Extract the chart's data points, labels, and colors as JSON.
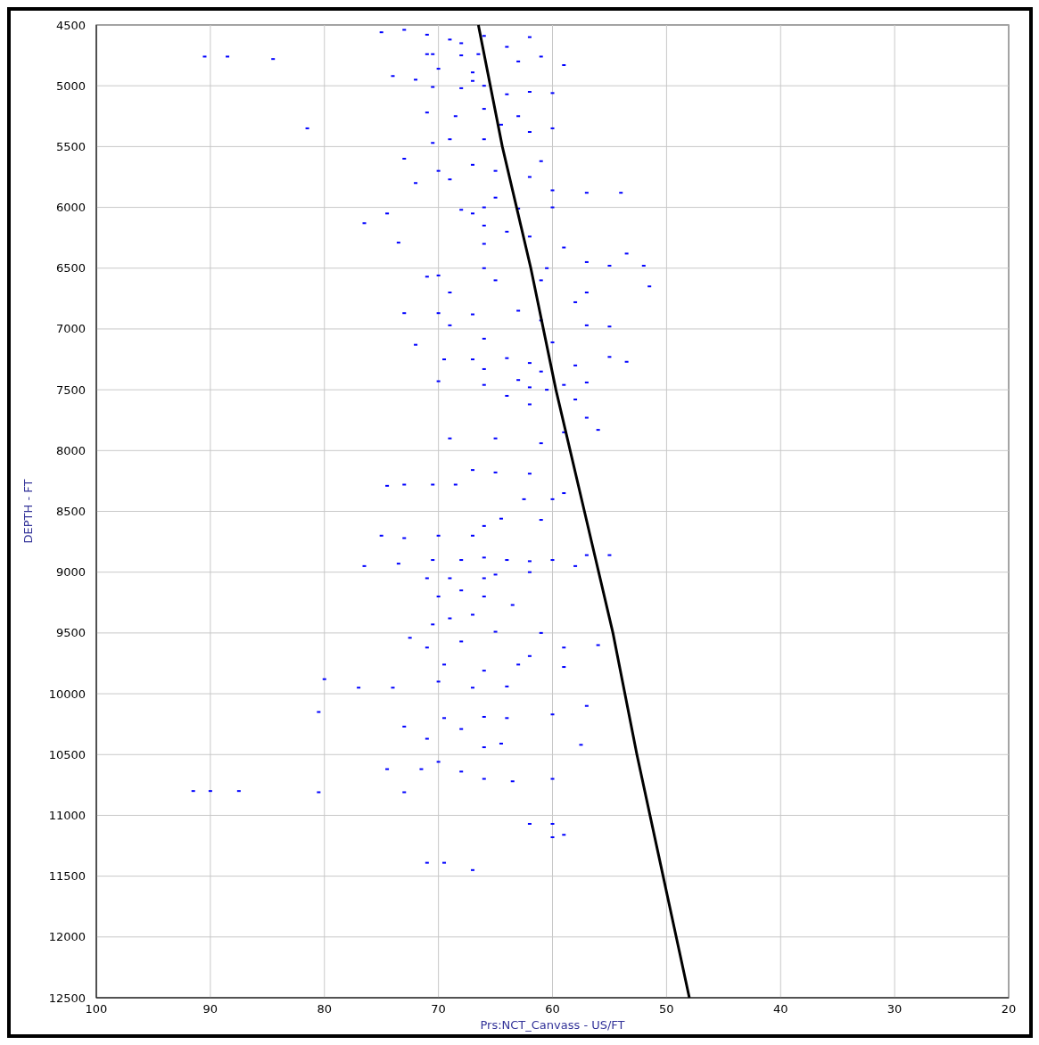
{
  "chart_data": {
    "type": "scatter",
    "xlabel": "Prs:NCT_Canvass - US/FT",
    "ylabel": "DEPTH - FT",
    "xlim": [
      100,
      20
    ],
    "ylim": [
      12500,
      4500
    ],
    "xticks": [
      100,
      90,
      80,
      70,
      60,
      50,
      40,
      30,
      20
    ],
    "yticks": [
      4500,
      5000,
      5500,
      6000,
      6500,
      7000,
      7500,
      8000,
      8500,
      9000,
      9500,
      10000,
      10500,
      11000,
      11500,
      12000,
      12500
    ],
    "grid": true,
    "series": [
      {
        "color": "#0000ff",
        "marker": "square",
        "x": [
          75,
          73,
          71,
          69,
          68,
          66,
          62,
          64,
          71,
          70.5,
          68,
          66.5,
          63,
          59,
          70,
          67,
          74,
          72,
          61,
          67,
          90.5,
          88.5,
          84.5,
          70.5,
          68,
          66,
          64,
          62,
          60,
          68.5,
          66,
          63,
          71,
          64.5,
          62,
          60,
          81.5,
          69,
          66,
          73,
          70.5,
          61,
          67,
          65,
          62,
          70,
          72,
          69,
          57,
          54,
          60,
          65,
          66,
          68,
          63,
          60,
          67,
          74.5,
          76.5,
          66,
          64,
          62,
          73.5,
          66,
          59,
          57,
          55,
          52,
          53.5,
          60.5,
          66,
          71,
          70,
          69,
          61,
          57,
          51.5,
          65,
          70,
          67,
          63,
          73,
          58,
          61,
          57,
          55,
          69,
          72,
          66,
          60,
          69.5,
          67,
          64,
          62,
          58,
          55,
          53.5,
          66,
          61,
          63,
          66,
          70,
          62,
          59,
          57,
          60.5,
          64,
          62,
          58,
          57,
          56,
          59,
          69,
          65,
          61,
          67,
          65,
          62,
          73,
          74.5,
          70.5,
          68.5,
          62.5,
          60,
          59,
          64.5,
          66,
          61,
          75,
          73,
          70,
          67,
          76.5,
          73.5,
          70.5,
          68,
          66,
          64,
          62,
          60,
          57,
          55,
          58,
          66,
          69,
          71,
          62,
          65,
          68,
          70,
          66,
          63.5,
          67,
          69,
          70.5,
          65,
          61,
          59,
          56,
          62,
          71,
          72.5,
          68,
          69.5,
          66,
          63,
          59,
          80,
          77,
          74,
          67,
          70,
          64,
          80.5,
          66,
          60,
          64,
          57,
          73,
          69.5,
          68,
          71,
          64.5,
          57.5,
          66,
          70,
          71.5,
          68,
          66,
          74.5,
          63.5,
          60,
          91.5,
          90,
          87.5,
          80.5,
          73,
          62,
          60,
          59,
          60,
          71,
          69.5,
          67
        ],
        "values": [
          4560,
          4540,
          4580,
          4620,
          4650,
          4590,
          4600,
          4680,
          4740,
          4740,
          4750,
          4740,
          4800,
          4830,
          4860,
          4890,
          4920,
          4950,
          4760,
          4960,
          4760,
          4760,
          4780,
          5010,
          5020,
          5000,
          5070,
          5050,
          5060,
          5250,
          5190,
          5250,
          5220,
          5320,
          5380,
          5350,
          5350,
          5440,
          5440,
          5600,
          5470,
          5620,
          5650,
          5700,
          5750,
          5700,
          5800,
          5770,
          5880,
          5880,
          5860,
          5920,
          6000,
          6020,
          6010,
          6000,
          6050,
          6050,
          6130,
          6150,
          6200,
          6240,
          6290,
          6300,
          6330,
          6450,
          6480,
          6480,
          6380,
          6500,
          6500,
          6570,
          6560,
          6700,
          6600,
          6700,
          6650,
          6600,
          6870,
          6880,
          6850,
          6870,
          6780,
          6930,
          6970,
          6980,
          6970,
          7130,
          7080,
          7110,
          7250,
          7250,
          7240,
          7280,
          7300,
          7230,
          7270,
          7330,
          7350,
          7420,
          7460,
          7430,
          7480,
          7460,
          7440,
          7500,
          7550,
          7620,
          7580,
          7730,
          7830,
          7850,
          7900,
          7900,
          7940,
          8160,
          8180,
          8190,
          8280,
          8290,
          8280,
          8280,
          8400,
          8400,
          8350,
          8560,
          8620,
          8570,
          8700,
          8720,
          8700,
          8700,
          8950,
          8930,
          8900,
          8900,
          8880,
          8900,
          8910,
          8900,
          8860,
          8860,
          8950,
          9050,
          9050,
          9050,
          9000,
          9020,
          9150,
          9200,
          9200,
          9270,
          9350,
          9380,
          9430,
          9490,
          9500,
          9620,
          9600,
          9690,
          9620,
          9540,
          9570,
          9760,
          9810,
          9760,
          9780,
          9880,
          9950,
          9950,
          9950,
          9900,
          9940,
          10150,
          10190,
          10170,
          10200,
          10100,
          10270,
          10200,
          10290,
          10370,
          10410,
          10420,
          10440,
          10560,
          10620,
          10640,
          10700,
          10620,
          10720,
          10700,
          10800,
          10800,
          10800,
          10810,
          10810,
          11070,
          11070,
          11160,
          11180,
          11390,
          11390,
          11450
        ]
      },
      {
        "type": "line",
        "color": "#000000",
        "line_style": "solid",
        "marker": "none",
        "x": [
          66.5,
          64.4,
          61.9,
          59.7,
          57.2,
          54.7,
          52.6,
          50.3,
          48.0
        ],
        "values": [
          4500,
          5500,
          6500,
          7500,
          8500,
          9500,
          10500,
          11500,
          12500
        ]
      }
    ]
  }
}
